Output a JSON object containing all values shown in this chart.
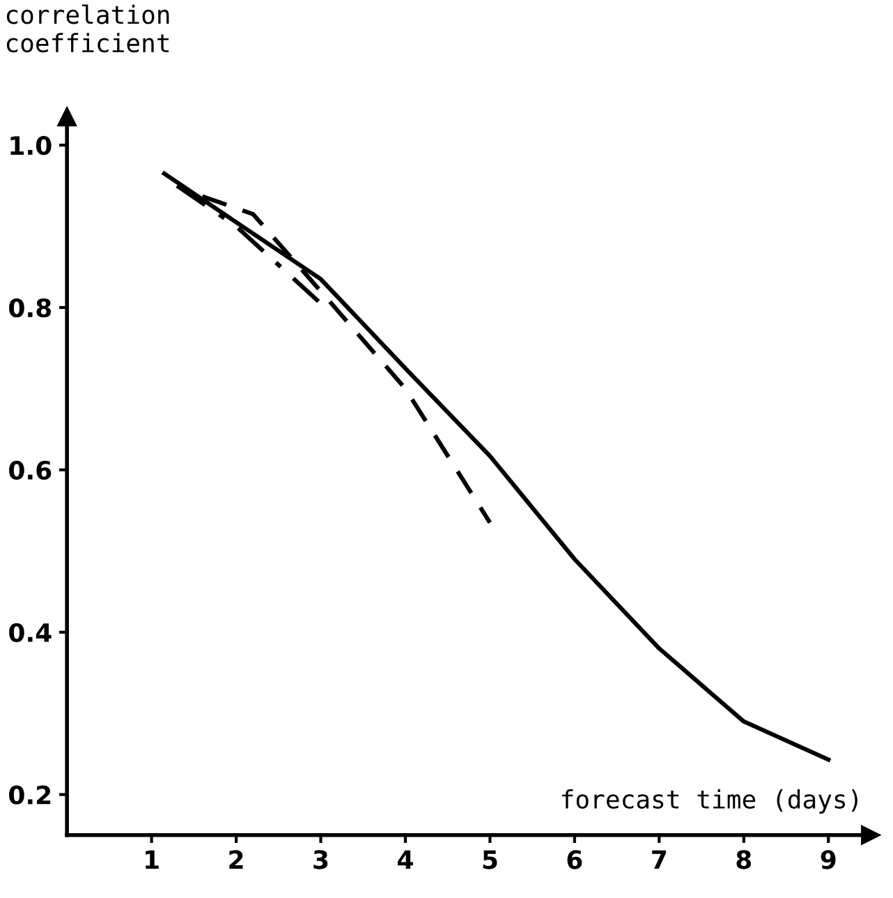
{
  "chart_data": {
    "type": "line",
    "xlabel": "forecast time (days)",
    "ylabel": "correlation\ncoefficient",
    "xlim": [
      0,
      9.5
    ],
    "xticks": [
      1,
      2,
      3,
      4,
      5,
      6,
      7,
      8,
      9
    ],
    "ylim": [
      0.15,
      1.035
    ],
    "yticks": [
      0.2,
      0.4,
      0.6,
      {
        "value": 0.8,
        "label": "0.8"
      },
      {
        "value": 1.0,
        "label": "1.0"
      }
    ],
    "grid": false,
    "legend": false,
    "marker": "none",
    "series": [
      {
        "color": "#000000",
        "line_style": "solid",
        "x": [
          1.15,
          2,
          3,
          4,
          5,
          6,
          7,
          8,
          9
        ],
        "values": [
          0.965,
          0.905,
          0.835,
          0.725,
          0.617,
          0.49,
          0.38,
          0.29,
          0.243
        ]
      },
      {
        "color": "#000000",
        "line_style": "dashed",
        "x": [
          1.6,
          2.2,
          3,
          4,
          5
        ],
        "values": [
          0.937,
          0.915,
          0.82,
          0.7,
          0.535
        ]
      },
      {
        "color": "#000000",
        "line_style": "dashdot",
        "x": [
          1.3,
          2,
          3
        ],
        "values": [
          0.95,
          0.9,
          0.805
        ]
      }
    ]
  }
}
